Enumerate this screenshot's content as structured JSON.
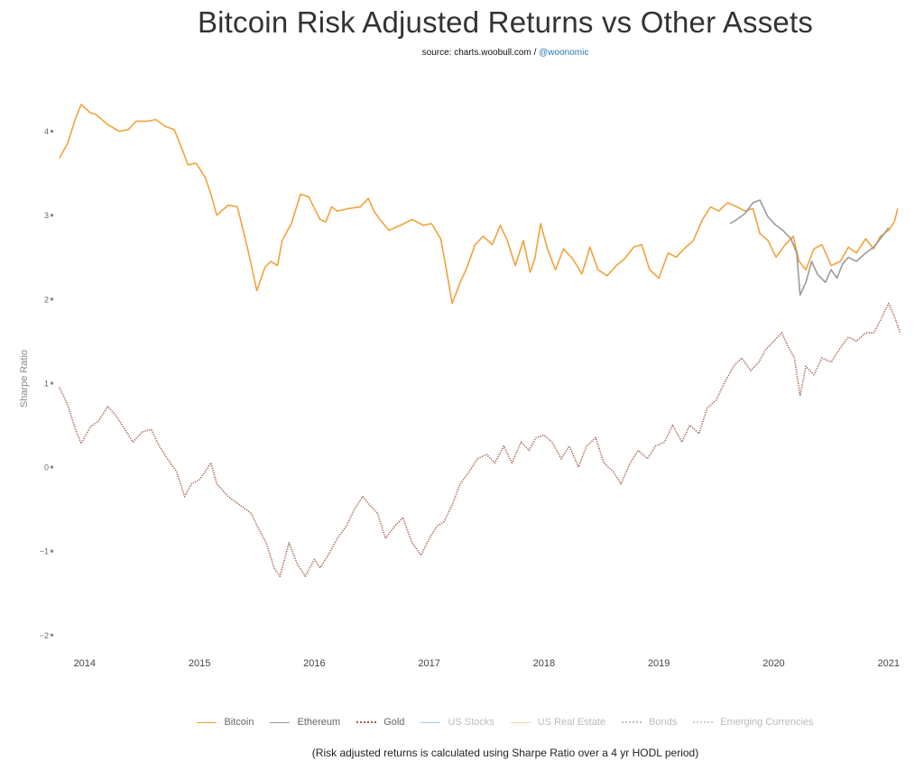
{
  "title": "Bitcoin Risk Adjusted Returns vs Other Assets",
  "subtitle_source": "source: charts.woobull.com / ",
  "subtitle_link": "@woonomic",
  "footnote": "(Risk adjusted returns is calculated using Sharpe Ratio over a 4 yr HODL period)",
  "colors": {
    "bitcoin": "#f2a23a",
    "ethereum": "#9a9a9a",
    "gold": "#a0604a",
    "us_stocks": "#9fc8e8",
    "us_real_estate": "#e8dc9a",
    "bonds": "#c8b8b8",
    "emerging": "#d8c8d8",
    "axis_text": "#666666"
  },
  "legend": [
    {
      "label": "Bitcoin",
      "color": "#f2a23a",
      "style": "solid",
      "active": true
    },
    {
      "label": "Ethereum",
      "color": "#9a9a9a",
      "style": "solid",
      "active": true
    },
    {
      "label": "Gold",
      "color": "#a0604a",
      "style": "dotted",
      "active": true
    },
    {
      "label": "US Stocks",
      "color": "#9fc8e8",
      "style": "solid",
      "active": false
    },
    {
      "label": "US Real Estate",
      "color": "#e8dc9a",
      "style": "solid",
      "active": false
    },
    {
      "label": "Bonds",
      "color": "#c8b8b8",
      "style": "dotted",
      "active": false
    },
    {
      "label": "Emerging Currencies",
      "color": "#d8c8d8",
      "style": "dotted",
      "active": false
    }
  ],
  "chart_data": {
    "type": "line",
    "title": "Bitcoin Risk Adjusted Returns vs Other Assets",
    "ylabel": "Sharpe Ratio",
    "xlabel": "",
    "xlim": [
      2013.75,
      2021.12
    ],
    "ylim": [
      -2.05,
      4.35
    ],
    "y_ticks": [
      4,
      3,
      2,
      1,
      0,
      -1,
      -2
    ],
    "y_tick_labels": [
      "4",
      "3",
      "2",
      "1",
      "0",
      "−1",
      "−2"
    ],
    "x_ticks": [
      2014,
      2015,
      2016,
      2017,
      2018,
      2019,
      2020,
      2021
    ],
    "x_tick_labels": [
      "2014",
      "2015",
      "2016",
      "2017",
      "2018",
      "2019",
      "2020",
      "2021"
    ],
    "grid": false,
    "legend_position": "bottom",
    "series": [
      {
        "name": "Bitcoin",
        "style": "solid",
        "x": [
          2013.78,
          2013.85,
          2013.92,
          2013.97,
          2014.05,
          2014.1,
          2014.2,
          2014.3,
          2014.38,
          2014.45,
          2014.55,
          2014.62,
          2014.7,
          2014.78,
          2014.85,
          2014.9,
          2014.97,
          2015.05,
          2015.1,
          2015.15,
          2015.25,
          2015.33,
          2015.42,
          2015.5,
          2015.57,
          2015.62,
          2015.68,
          2015.72,
          2015.8,
          2015.88,
          2015.95,
          2016.05,
          2016.1,
          2016.15,
          2016.2,
          2016.3,
          2016.4,
          2016.47,
          2016.52,
          2016.57,
          2016.65,
          2016.75,
          2016.85,
          2016.95,
          2017.02,
          2017.1,
          2017.15,
          2017.2,
          2017.27,
          2017.33,
          2017.4,
          2017.47,
          2017.55,
          2017.62,
          2017.68,
          2017.75,
          2017.82,
          2017.88,
          2017.92,
          2017.97,
          2018.03,
          2018.1,
          2018.17,
          2018.25,
          2018.33,
          2018.4,
          2018.47,
          2018.55,
          2018.63,
          2018.7,
          2018.78,
          2018.85,
          2018.92,
          2019.0,
          2019.08,
          2019.15,
          2019.22,
          2019.3,
          2019.38,
          2019.45,
          2019.52,
          2019.6,
          2019.68,
          2019.75,
          2019.82,
          2019.88,
          2019.95,
          2020.02,
          2020.1,
          2020.17,
          2020.22,
          2020.28,
          2020.35,
          2020.42,
          2020.5,
          2020.58,
          2020.65,
          2020.72,
          2020.8,
          2020.87,
          2020.93,
          2021.0,
          2021.05,
          2021.08
        ],
        "y": [
          3.68,
          3.85,
          4.15,
          4.32,
          4.22,
          4.2,
          4.08,
          4.0,
          4.02,
          4.12,
          4.12,
          4.14,
          4.06,
          4.02,
          3.78,
          3.6,
          3.62,
          3.45,
          3.25,
          3.0,
          3.12,
          3.1,
          2.6,
          2.1,
          2.38,
          2.45,
          2.4,
          2.7,
          2.9,
          3.25,
          3.22,
          2.95,
          2.92,
          3.1,
          3.05,
          3.08,
          3.1,
          3.2,
          3.05,
          2.95,
          2.82,
          2.88,
          2.95,
          2.88,
          2.9,
          2.72,
          2.35,
          1.95,
          2.2,
          2.38,
          2.65,
          2.75,
          2.65,
          2.88,
          2.7,
          2.4,
          2.7,
          2.32,
          2.48,
          2.9,
          2.6,
          2.35,
          2.6,
          2.48,
          2.3,
          2.62,
          2.35,
          2.28,
          2.4,
          2.48,
          2.62,
          2.65,
          2.35,
          2.25,
          2.55,
          2.5,
          2.6,
          2.7,
          2.95,
          3.1,
          3.05,
          3.15,
          3.1,
          3.05,
          3.08,
          2.78,
          2.7,
          2.5,
          2.65,
          2.75,
          2.45,
          2.35,
          2.6,
          2.65,
          2.4,
          2.45,
          2.62,
          2.55,
          2.72,
          2.6,
          2.75,
          2.82,
          2.92,
          3.08
        ]
      },
      {
        "name": "Ethereum",
        "style": "solid",
        "x": [
          2019.62,
          2019.68,
          2019.75,
          2019.82,
          2019.88,
          2019.95,
          2020.02,
          2020.08,
          2020.15,
          2020.2,
          2020.23,
          2020.28,
          2020.33,
          2020.38,
          2020.45,
          2020.5,
          2020.55,
          2020.6,
          2020.65,
          2020.72,
          2020.8,
          2020.87,
          2020.93,
          2021.0
        ],
        "y": [
          2.9,
          2.95,
          3.02,
          3.15,
          3.18,
          2.98,
          2.88,
          2.82,
          2.72,
          2.55,
          2.05,
          2.2,
          2.45,
          2.3,
          2.2,
          2.35,
          2.25,
          2.42,
          2.5,
          2.45,
          2.55,
          2.62,
          2.72,
          2.85
        ]
      },
      {
        "name": "Gold",
        "style": "dotted",
        "x": [
          2013.78,
          2013.85,
          2013.92,
          2013.97,
          2014.05,
          2014.12,
          2014.2,
          2014.27,
          2014.35,
          2014.42,
          2014.5,
          2014.58,
          2014.65,
          2014.72,
          2014.8,
          2014.87,
          2014.93,
          2015.0,
          2015.05,
          2015.1,
          2015.15,
          2015.25,
          2015.35,
          2015.45,
          2015.52,
          2015.58,
          2015.65,
          2015.7,
          2015.78,
          2015.85,
          2015.92,
          2016.0,
          2016.05,
          2016.12,
          2016.2,
          2016.28,
          2016.35,
          2016.42,
          2016.48,
          2016.55,
          2016.62,
          2016.7,
          2016.77,
          2016.85,
          2016.93,
          2017.0,
          2017.07,
          2017.13,
          2017.2,
          2017.27,
          2017.35,
          2017.42,
          2017.5,
          2017.57,
          2017.65,
          2017.72,
          2017.8,
          2017.87,
          2017.93,
          2018.0,
          2018.07,
          2018.15,
          2018.22,
          2018.3,
          2018.37,
          2018.45,
          2018.52,
          2018.6,
          2018.67,
          2018.75,
          2018.82,
          2018.9,
          2018.97,
          2019.05,
          2019.12,
          2019.2,
          2019.27,
          2019.35,
          2019.42,
          2019.5,
          2019.57,
          2019.65,
          2019.72,
          2019.8,
          2019.87,
          2019.93,
          2020.0,
          2020.07,
          2020.12,
          2020.18,
          2020.23,
          2020.28,
          2020.35,
          2020.42,
          2020.5,
          2020.57,
          2020.65,
          2020.72,
          2020.8,
          2020.87,
          2020.93,
          2021.0,
          2021.05,
          2021.1
        ],
        "y": [
          0.95,
          0.75,
          0.45,
          0.28,
          0.48,
          0.55,
          0.72,
          0.62,
          0.45,
          0.3,
          0.42,
          0.45,
          0.25,
          0.1,
          -0.05,
          -0.35,
          -0.2,
          -0.15,
          -0.05,
          0.05,
          -0.2,
          -0.35,
          -0.45,
          -0.55,
          -0.75,
          -0.9,
          -1.2,
          -1.3,
          -0.9,
          -1.15,
          -1.3,
          -1.1,
          -1.2,
          -1.05,
          -0.85,
          -0.7,
          -0.5,
          -0.35,
          -0.45,
          -0.55,
          -0.85,
          -0.7,
          -0.6,
          -0.9,
          -1.05,
          -0.85,
          -0.7,
          -0.65,
          -0.45,
          -0.2,
          -0.05,
          0.1,
          0.15,
          0.05,
          0.25,
          0.05,
          0.3,
          0.2,
          0.35,
          0.38,
          0.3,
          0.1,
          0.25,
          0.0,
          0.25,
          0.35,
          0.05,
          -0.05,
          -0.2,
          0.05,
          0.2,
          0.1,
          0.25,
          0.3,
          0.5,
          0.3,
          0.5,
          0.4,
          0.7,
          0.8,
          1.0,
          1.2,
          1.3,
          1.15,
          1.25,
          1.4,
          1.5,
          1.6,
          1.45,
          1.3,
          0.85,
          1.2,
          1.1,
          1.3,
          1.25,
          1.4,
          1.55,
          1.5,
          1.6,
          1.6,
          1.75,
          1.95,
          1.8,
          1.6
        ]
      }
    ]
  }
}
